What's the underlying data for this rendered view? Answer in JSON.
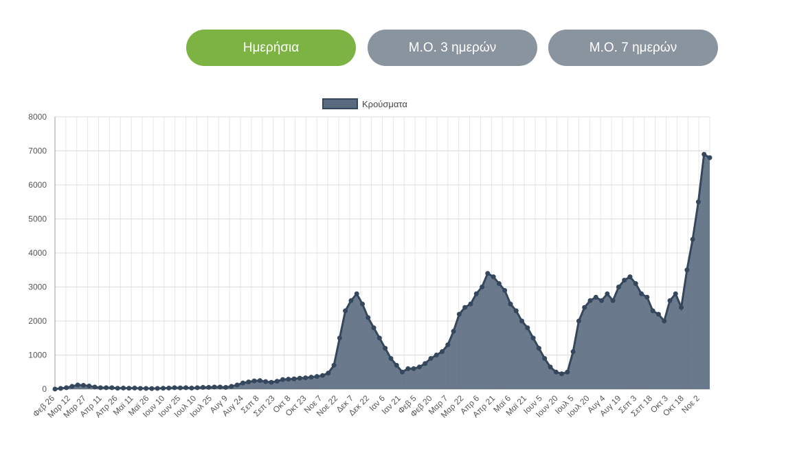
{
  "tabs": [
    {
      "label": "Ημερήσια",
      "active": true
    },
    {
      "label": "Μ.Ο. 3 ημερών",
      "active": false
    },
    {
      "label": "Μ.Ο. 7 ημερών",
      "active": false
    }
  ],
  "colors": {
    "active_tab": "#7cb342",
    "inactive_tab": "#8a949f",
    "series_fill": "#5a6a7e",
    "series_line": "#34475c"
  },
  "chart_data": {
    "type": "area",
    "legend": "Κρούσματα",
    "legend_position": "top",
    "ylim": [
      0,
      8000
    ],
    "y_ticks": [
      0,
      1000,
      2000,
      3000,
      4000,
      5000,
      6000,
      7000,
      8000
    ],
    "x_tick_labels": [
      "Φεβ 26",
      "Μαρ 12",
      "Μαρ 27",
      "Απρ 11",
      "Απρ 26",
      "Μαϊ 11",
      "Μαϊ 26",
      "Ιουν 10",
      "Ιουν 25",
      "Ιουλ 10",
      "Ιουλ 25",
      "Αυγ 9",
      "Αυγ 24",
      "Σεπ 8",
      "Σεπ 23",
      "Οκτ 8",
      "Οκτ 23",
      "Νοε 7",
      "Νοε 22",
      "Δεκ 7",
      "Δεκ 22",
      "Ιαν 6",
      "Ιαν 21",
      "Φεβ 5",
      "Φεβ 20",
      "Μαρ 7",
      "Μαρ 22",
      "Απρ 6",
      "Απρ 21",
      "Μαϊ 6",
      "Μαϊ 21",
      "Ιουν 5",
      "Ιουν 20",
      "Ιουλ 5",
      "Ιουλ 20",
      "Αυγ 4",
      "Αυγ 19",
      "Σεπ 3",
      "Σεπ 18",
      "Οκτ 3",
      "Οκτ 18",
      "Νοε 2"
    ],
    "grid": true,
    "series": [
      {
        "name": "Κρούσματα",
        "x_start": "Φεβ 26",
        "interval_days": 5,
        "values": [
          1,
          20,
          40,
          80,
          120,
          110,
          90,
          60,
          40,
          40,
          40,
          25,
          30,
          25,
          30,
          20,
          20,
          15,
          20,
          25,
          30,
          40,
          35,
          40,
          30,
          40,
          50,
          50,
          60,
          60,
          50,
          80,
          120,
          180,
          210,
          240,
          250,
          220,
          200,
          230,
          280,
          290,
          300,
          320,
          330,
          350,
          370,
          400,
          470,
          700,
          1500,
          2300,
          2600,
          2800,
          2500,
          2100,
          1800,
          1500,
          1200,
          900,
          700,
          500,
          600,
          600,
          650,
          750,
          900,
          1000,
          1100,
          1300,
          1700,
          2200,
          2400,
          2500,
          2800,
          3000,
          3400,
          3300,
          3100,
          2900,
          2500,
          2300,
          2000,
          1800,
          1500,
          1200,
          900,
          650,
          500,
          450,
          500,
          1100,
          2000,
          2400,
          2600,
          2700,
          2600,
          2800,
          2600,
          3000,
          3200,
          3300,
          3100,
          2800,
          2700,
          2300,
          2200,
          2000,
          2600,
          2800,
          2400,
          3500,
          4400,
          5500,
          6900,
          6800
        ]
      }
    ]
  }
}
